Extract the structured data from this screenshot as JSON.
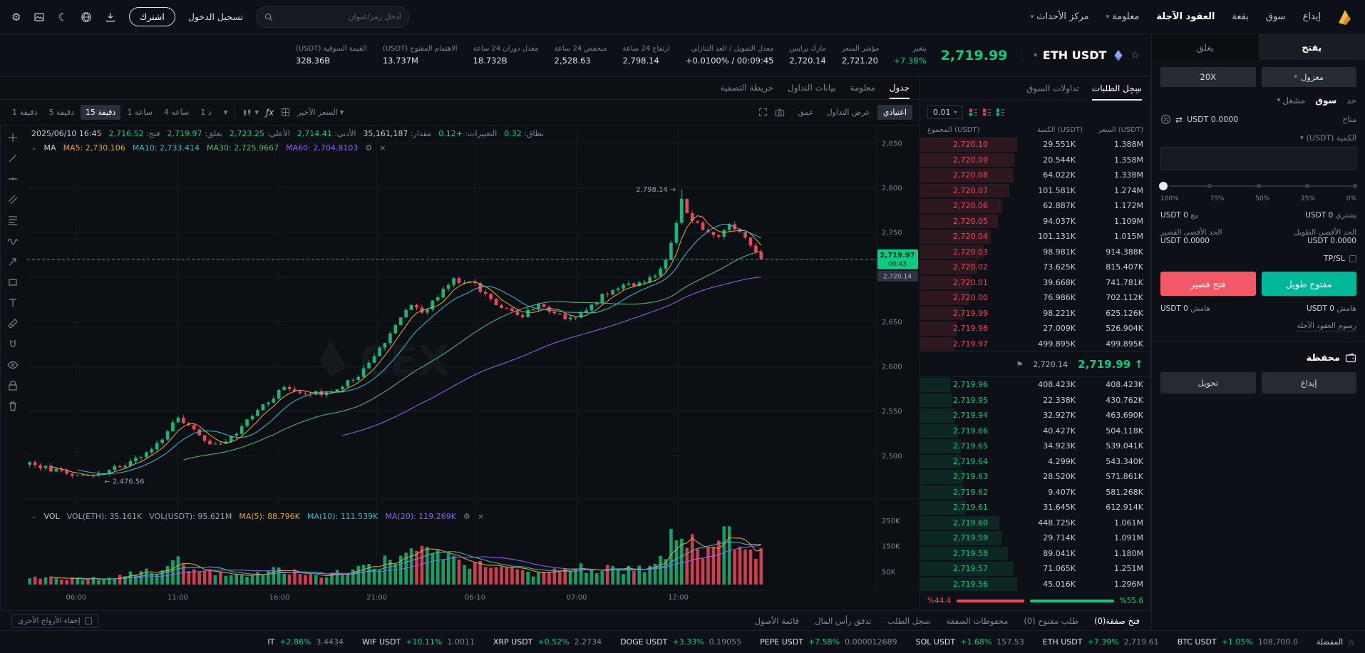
{
  "app": {
    "watermark": "CEX"
  },
  "colors": {
    "green": "#0ecb81",
    "red": "#f6465d",
    "buy_button": "#00b897",
    "sell_button": "#f35866",
    "brand_gold": "#f5b73d"
  },
  "navbar": {
    "menu": [
      {
        "label": "إيداع"
      },
      {
        "label": "سوق"
      },
      {
        "label": "بقعة"
      },
      {
        "label": "العقود الآجلة",
        "active": true
      },
      {
        "label": "معلومة",
        "caret": true
      },
      {
        "label": "مركز الأحداث",
        "caret": true
      }
    ],
    "search_placeholder": "أدخل رمز/عنوان",
    "login_label": "تسجيل الدخول",
    "signup_label": "اشترك"
  },
  "header": {
    "pair": "ETH USDT",
    "price": "2,719.99",
    "change_label": "يتغير",
    "change_value": "+7.38%",
    "stats": [
      {
        "label": "مؤشر السعر",
        "value": "2,721.20"
      },
      {
        "label": "مارك برايس",
        "value": "2,720.14"
      },
      {
        "label": "معدل التمويل / العد التنازلي",
        "value": "+0.0100% / 00:09:45"
      },
      {
        "label": "ارتفاع 24 ساعة",
        "value": "2,798.14"
      },
      {
        "label": "منخفض 24 ساعة",
        "value": "2,528.63"
      },
      {
        "label": "معدل دوران 24 ساعة",
        "value": "18.732B"
      },
      {
        "label": "الاهتمام المفتوح (USDT)",
        "value": "13.737M"
      },
      {
        "label": "القيمة السوقية (USDT)",
        "value": "328.36B"
      }
    ]
  },
  "chart": {
    "tabs": [
      {
        "label": "جدول",
        "active": true
      },
      {
        "label": "معلومة"
      },
      {
        "label": "بيانات التداول"
      },
      {
        "label": "خريطة التصفية"
      }
    ],
    "timeframes": [
      {
        "label": "دقيقة 1"
      },
      {
        "label": "دقيقة 5"
      },
      {
        "label": "دقيقة 15",
        "active": true
      },
      {
        "label": "ساعة 1"
      },
      {
        "label": "ساعة 4"
      },
      {
        "label": "د 1"
      }
    ],
    "indicator_label": "ƒx",
    "last_price_label": "السعر الأخير",
    "view_tabs": [
      {
        "label": "اعتيادي",
        "active": true
      },
      {
        "label": "عرض التداول"
      },
      {
        "label": "عمق"
      }
    ],
    "legend": {
      "datetime": "2025/06/10 16:45",
      "pairs": [
        {
          "label": "فتح:",
          "value": "2,716.52",
          "tone": "up"
        },
        {
          "label": "يغلق:",
          "value": "2,719.97",
          "tone": "up"
        },
        {
          "label": "الأعلى:",
          "value": "2,723.25",
          "tone": "up"
        },
        {
          "label": "الأدنى:",
          "value": "2,714.41",
          "tone": "up"
        },
        {
          "label": "مقدار:",
          "value": "35,161,187",
          "tone": "plain"
        },
        {
          "label": "التغييرات:",
          "value": "+0.12",
          "tone": "up"
        },
        {
          "label": "نطاق:",
          "value": "0.32",
          "tone": "up"
        }
      ]
    },
    "ma_legend": {
      "title": "MA",
      "items": [
        {
          "name": "MA5:",
          "value": "2,730.106",
          "color": "#dfa93f"
        },
        {
          "name": "MA10:",
          "value": "2,733.414",
          "color": "#3fb7c9"
        },
        {
          "name": "MA30:",
          "value": "2,725.9667",
          "color": "#58b974"
        },
        {
          "name": "MA60:",
          "value": "2,704.8103",
          "color": "#8d68f0"
        }
      ]
    },
    "vol_legend": {
      "title": "VOL",
      "items": [
        {
          "name": "VOL(ETH):",
          "value": "35.161K",
          "color": "#9aa3b2"
        },
        {
          "name": "VOL(USDT):",
          "value": "95.621M",
          "color": "#9aa3b2"
        },
        {
          "name": "MA(5):",
          "value": "88.796K",
          "color": "#dfa93f"
        },
        {
          "name": "MA(10):",
          "value": "111.539K",
          "color": "#3fb7c9"
        },
        {
          "name": "MA(20):",
          "value": "119.269K",
          "color": "#8d68f0"
        }
      ]
    },
    "hide_others_label": "إخفاء الأزواج الأخرى"
  },
  "chart_data": {
    "type": "candlestick",
    "pair": "ETH USDT",
    "interval": "15m",
    "title": "ETH USDT 15m",
    "y_ticks": [
      2850,
      2800,
      2750,
      2700,
      2650,
      2600,
      2550,
      2500
    ],
    "ylim": [
      2458,
      2865
    ],
    "vol_ticks": [
      {
        "label": "250K",
        "value": 250000
      },
      {
        "label": "150K",
        "value": 150000
      },
      {
        "label": "50K",
        "value": 50000
      }
    ],
    "x_ticks": [
      {
        "label": "06:00",
        "f": 0.058
      },
      {
        "label": "11:00",
        "f": 0.178
      },
      {
        "label": "16:00",
        "f": 0.298
      },
      {
        "label": "21:00",
        "f": 0.413
      },
      {
        "label": "06-10",
        "f": 0.529
      },
      {
        "label": "07:00",
        "f": 0.649
      },
      {
        "label": "12:00",
        "f": 0.769
      }
    ],
    "price_path": [
      [
        0,
        2492
      ],
      [
        0.03,
        2484
      ],
      [
        0.06,
        2479
      ],
      [
        0.08,
        2477
      ],
      [
        0.1,
        2488
      ],
      [
        0.13,
        2496
      ],
      [
        0.155,
        2515
      ],
      [
        0.175,
        2543
      ],
      [
        0.19,
        2536
      ],
      [
        0.21,
        2512
      ],
      [
        0.235,
        2515
      ],
      [
        0.27,
        2550
      ],
      [
        0.3,
        2575
      ],
      [
        0.33,
        2571
      ],
      [
        0.36,
        2569
      ],
      [
        0.4,
        2597
      ],
      [
        0.43,
        2638
      ],
      [
        0.455,
        2670
      ],
      [
        0.47,
        2660
      ],
      [
        0.49,
        2686
      ],
      [
        0.505,
        2698
      ],
      [
        0.53,
        2691
      ],
      [
        0.555,
        2667
      ],
      [
        0.585,
        2657
      ],
      [
        0.605,
        2670
      ],
      [
        0.625,
        2661
      ],
      [
        0.645,
        2651
      ],
      [
        0.665,
        2668
      ],
      [
        0.685,
        2681
      ],
      [
        0.705,
        2689
      ],
      [
        0.725,
        2693
      ],
      [
        0.74,
        2701
      ],
      [
        0.755,
        2712
      ],
      [
        0.765,
        2748
      ],
      [
        0.775,
        2786
      ],
      [
        0.785,
        2766
      ],
      [
        0.8,
        2754
      ],
      [
        0.815,
        2744
      ],
      [
        0.83,
        2758
      ],
      [
        0.845,
        2749
      ],
      [
        0.86,
        2734
      ],
      [
        0.87,
        2721
      ]
    ],
    "volume_path": [
      [
        0,
        28000
      ],
      [
        0.05,
        22000
      ],
      [
        0.1,
        30000
      ],
      [
        0.155,
        62000
      ],
      [
        0.175,
        92000
      ],
      [
        0.2,
        55000
      ],
      [
        0.25,
        35000
      ],
      [
        0.3,
        56000
      ],
      [
        0.35,
        40000
      ],
      [
        0.4,
        62000
      ],
      [
        0.43,
        95000
      ],
      [
        0.47,
        122000
      ],
      [
        0.5,
        90000
      ],
      [
        0.55,
        60000
      ],
      [
        0.6,
        46000
      ],
      [
        0.645,
        72000
      ],
      [
        0.7,
        55000
      ],
      [
        0.74,
        72000
      ],
      [
        0.765,
        180000
      ],
      [
        0.775,
        252000
      ],
      [
        0.79,
        160000
      ],
      [
        0.81,
        118000
      ],
      [
        0.82,
        215000
      ],
      [
        0.84,
        140000
      ],
      [
        0.86,
        150000
      ],
      [
        0.87,
        118000
      ]
    ],
    "high_marker": "2,798.14",
    "low_marker": "2,476.56",
    "last_price": 2719.97,
    "price_tag": {
      "price": "2,719.97",
      "countdown": "09:43"
    },
    "mark_tag": "2,720.14",
    "ma_periods": [
      5,
      10,
      30,
      60
    ],
    "vol_ma_periods": [
      5,
      10,
      20
    ],
    "candle_count": 139
  },
  "orderbook": {
    "tabs": [
      {
        "label": "سِجِل الطلبات",
        "active": true
      },
      {
        "label": "تداولات السوق"
      }
    ],
    "precision": "0.01",
    "columns": {
      "total": "المجموع (USDT)",
      "qty": "الكمية (USDT)",
      "price": "السعر (USDT)"
    },
    "asks": [
      {
        "price": "2,720.10",
        "qty": "29.551K",
        "total": "1.388M"
      },
      {
        "price": "2,720.09",
        "qty": "20.544K",
        "total": "1.358M"
      },
      {
        "price": "2,720.08",
        "qty": "64.022K",
        "total": "1.338M"
      },
      {
        "price": "2,720.07",
        "qty": "101.581K",
        "total": "1.274M"
      },
      {
        "price": "2,720.06",
        "qty": "62.887K",
        "total": "1.172M"
      },
      {
        "price": "2,720.05",
        "qty": "94.037K",
        "total": "1.109M"
      },
      {
        "price": "2,720.04",
        "qty": "101.131K",
        "total": "1.015M"
      },
      {
        "price": "2,720.03",
        "qty": "98.981K",
        "total": "914.388K"
      },
      {
        "price": "2,720.02",
        "qty": "73.625K",
        "total": "815.407K"
      },
      {
        "price": "2,720.01",
        "qty": "39.668K",
        "total": "741.781K"
      },
      {
        "price": "2,720.00",
        "qty": "76.986K",
        "total": "702.112K"
      },
      {
        "price": "2,719.99",
        "qty": "98.221K",
        "total": "625.126K"
      },
      {
        "price": "2,719.98",
        "qty": "27.009K",
        "total": "526.904K"
      },
      {
        "price": "2,719.97",
        "qty": "499.895K",
        "total": "499.895K"
      }
    ],
    "mid": {
      "price": "2,719.99",
      "direction": "up",
      "mark": "2,720.14"
    },
    "bids": [
      {
        "price": "2,719.96",
        "qty": "408.423K",
        "total": "408.423K"
      },
      {
        "price": "2,719.95",
        "qty": "22.338K",
        "total": "430.762K"
      },
      {
        "price": "2,719.94",
        "qty": "32.927K",
        "total": "463.690K"
      },
      {
        "price": "2,719.66",
        "qty": "40.427K",
        "total": "504.118K"
      },
      {
        "price": "2,719.65",
        "qty": "34.923K",
        "total": "539.041K"
      },
      {
        "price": "2,719.64",
        "qty": "4.299K",
        "total": "543.340K"
      },
      {
        "price": "2,719.63",
        "qty": "28.520K",
        "total": "571.861K"
      },
      {
        "price": "2,719.62",
        "qty": "9.407K",
        "total": "581.268K"
      },
      {
        "price": "2,719.61",
        "qty": "31.645K",
        "total": "612.914K"
      },
      {
        "price": "2,719.60",
        "qty": "448.725K",
        "total": "1.061M"
      },
      {
        "price": "2,719.59",
        "qty": "29.714K",
        "total": "1.091M"
      },
      {
        "price": "2,719.58",
        "qty": "89.041K",
        "total": "1.180M"
      },
      {
        "price": "2,719.57",
        "qty": "71.065K",
        "total": "1.251M"
      },
      {
        "price": "2,719.56",
        "qty": "45.016K",
        "total": "1.296M"
      }
    ],
    "ratio": {
      "sell_pct": 44.4,
      "buy_pct": 55.6,
      "sell_label": "%44.4",
      "buy_label": "%55.6"
    }
  },
  "orderform": {
    "tabs": [
      {
        "label": "يفتح",
        "active": true
      },
      {
        "label": "يغلق"
      }
    ],
    "margin_mode": "معزول",
    "leverage": "20X",
    "order_types": [
      {
        "label": "حد"
      },
      {
        "label": "سوق",
        "active": true
      },
      {
        "label": "مشغل",
        "caret": true
      }
    ],
    "available_label": "متاح",
    "available_value": "USDT 0.0000",
    "qty_label": "الكمية (USDT)",
    "slider_labels": [
      "0%",
      "25%",
      "50%",
      "75%",
      "100%"
    ],
    "buy_label": "يشتري",
    "buy_value": "USDT 0",
    "sell_label": "بيع",
    "sell_value": "USDT 0",
    "max_long_label": "الحد الأقصى الطويل",
    "max_long_value": "USDT 0.0000",
    "max_short_label": "الحد الأقصى القصير",
    "max_short_value": "USDT 0.0000",
    "tpsl_label": "TP/SL",
    "open_long_label": "مفتوح طويل",
    "open_short_label": "فتح قصير",
    "margin_label": "هامش",
    "margin_long_value": "USDT 0",
    "margin_short_value": "USDT 0",
    "fees_link": "رسوم العقود الآجلة",
    "wallet_title": "محفظة",
    "deposit_label": "إيداع",
    "transfer_label": "تحويل"
  },
  "bottom_tabs": {
    "items": [
      {
        "label": "فتح صفقة(0)",
        "active": true
      },
      {
        "label": "طلب مفتوح (0)"
      },
      {
        "label": "محفوظات الصفقة"
      },
      {
        "label": "سجل الطلب"
      },
      {
        "label": "تدفق رأس المال"
      },
      {
        "label": "قائمة الأصول"
      }
    ]
  },
  "ticker": {
    "favorites_label": "المفضلة",
    "items": [
      {
        "pair": "BTC USDT",
        "change": "+1.05%",
        "price": "108,700.0"
      },
      {
        "pair": "ETH USDT",
        "change": "+7.39%",
        "price": "2,719.61"
      },
      {
        "pair": "SOL USDT",
        "change": "+1.68%",
        "price": "157.53"
      },
      {
        "pair": "PEPE USDT",
        "change": "+7.58%",
        "price": "0.000012689"
      },
      {
        "pair": "DOGE USDT",
        "change": "+3.33%",
        "price": "0.19055"
      },
      {
        "pair": "XRP USDT",
        "change": "+0.52%",
        "price": "2.2734"
      },
      {
        "pair": "WIF USDT",
        "change": "+10.11%",
        "price": "1.0011"
      },
      {
        "pair": "IT",
        "change": "+2.86%",
        "price": "3.4434"
      }
    ]
  }
}
